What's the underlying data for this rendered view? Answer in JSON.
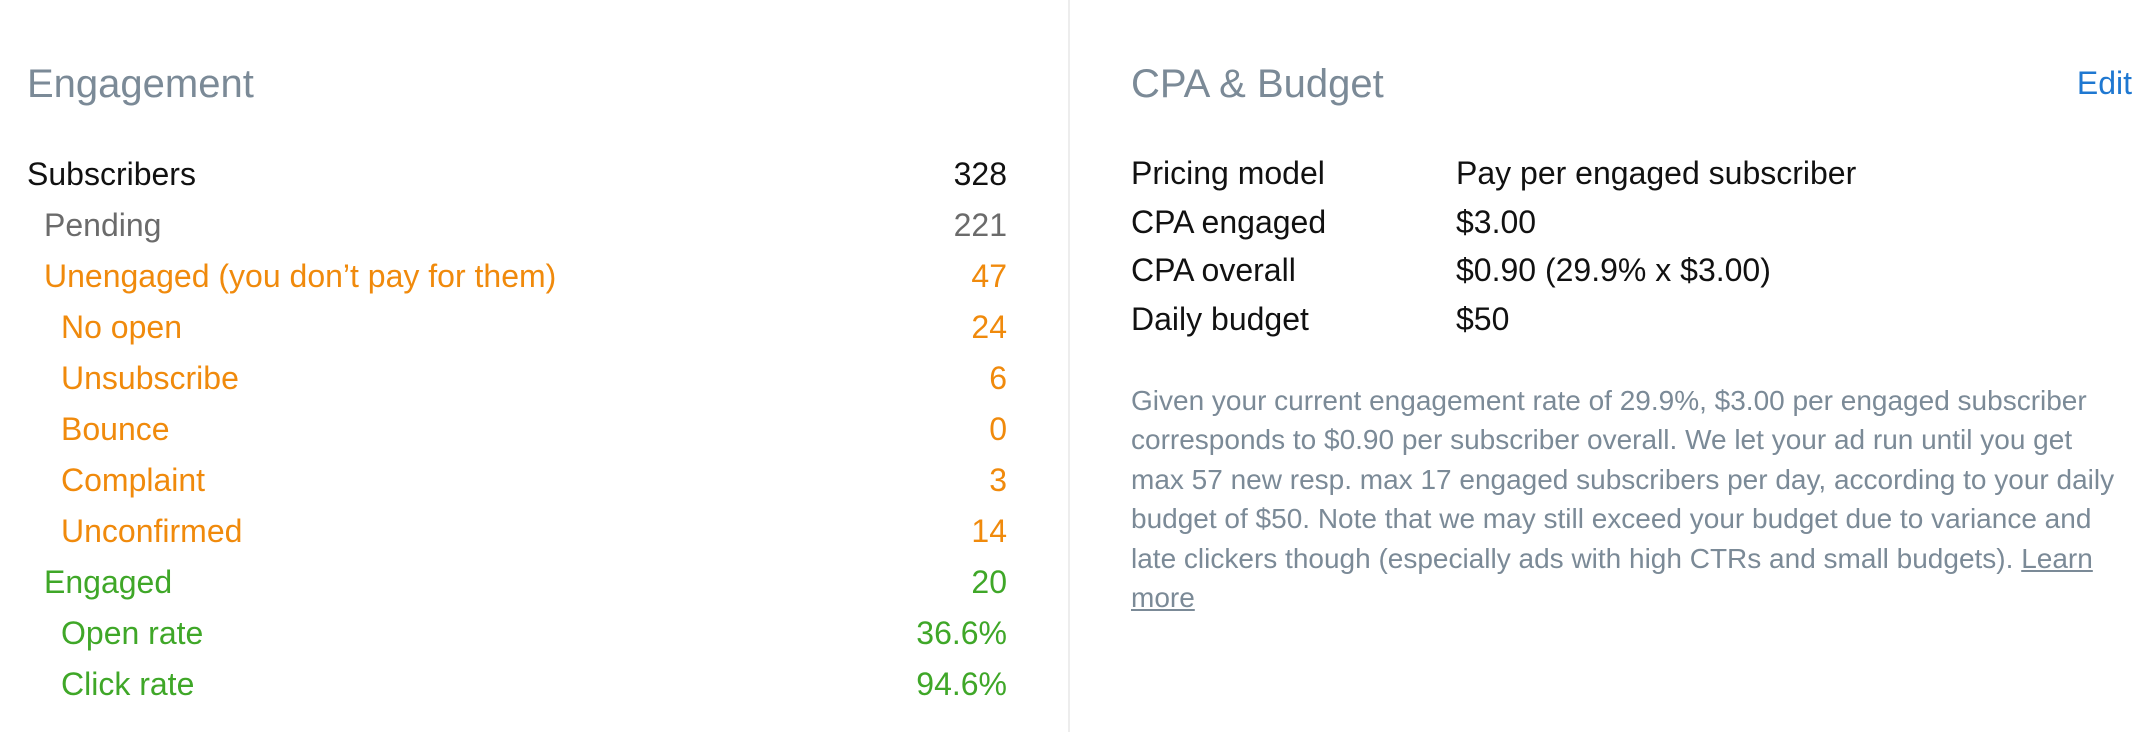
{
  "engagement": {
    "title": "Engagement",
    "rows": [
      {
        "label": "Subscribers",
        "value": "328"
      },
      {
        "label": "Pending",
        "value": "221"
      },
      {
        "label": "Unengaged (you don’t pay for them)",
        "value": "47"
      },
      {
        "label": "No open",
        "value": "24"
      },
      {
        "label": "Unsubscribe",
        "value": "6"
      },
      {
        "label": "Bounce",
        "value": "0"
      },
      {
        "label": "Complaint",
        "value": "3"
      },
      {
        "label": "Unconfirmed",
        "value": "14"
      },
      {
        "label": "Engaged",
        "value": "20"
      },
      {
        "label": "Open rate",
        "value": "36.6%"
      },
      {
        "label": "Click rate",
        "value": "94.6%"
      }
    ]
  },
  "cpa": {
    "title": "CPA & Budget",
    "edit_label": "Edit",
    "rows": [
      {
        "key": "Pricing model",
        "value": "Pay per engaged subscriber"
      },
      {
        "key": "CPA engaged",
        "value": "$3.00"
      },
      {
        "key": "CPA overall",
        "value": "$0.90 (29.9% x $3.00)"
      },
      {
        "key": "Daily budget",
        "value": "$50"
      }
    ],
    "note": "Given your current engagement rate of 29.9%, $3.00 per engaged subscriber corresponds to $0.90 per subscriber overall. We let your ad run until you get max 57 new resp. max 17 engaged subscribers per day, according to your daily budget of $50. Note that we may still exceed your budget due to variance and late clickers though (especially ads with high CTRs and small budgets).",
    "learn_more_label": "Learn more"
  },
  "colors": {
    "heading": "#7b8a97",
    "link": "#1f78d1",
    "orange": "#f08a0c",
    "green": "#3fa728",
    "gray": "#6b6b6b"
  }
}
